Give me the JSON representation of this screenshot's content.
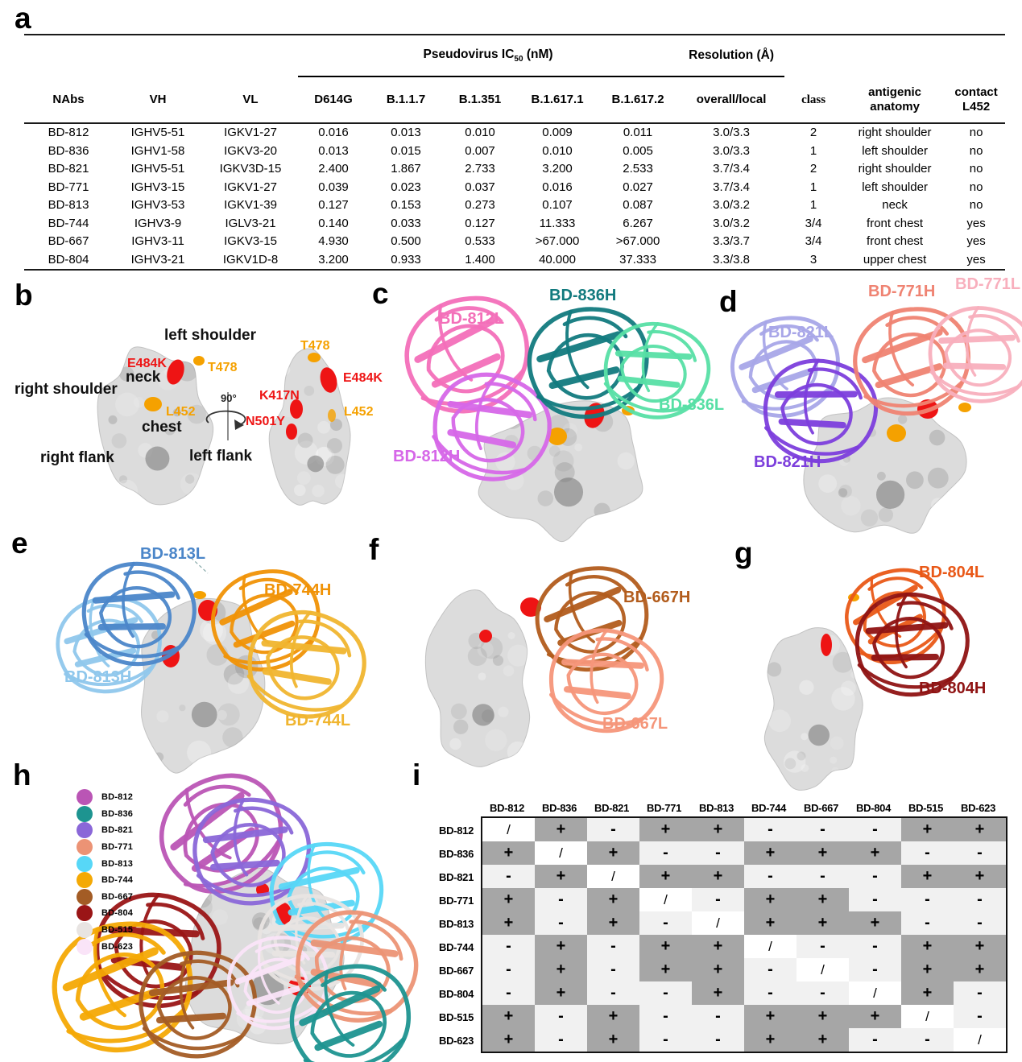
{
  "colors": {
    "site_red": "#ee1414",
    "site_orange": "#f5a100",
    "matrix_dark": "#a6a6a6",
    "matrix_light": "#f1f1f1",
    "surface_gray": "#dcdcdc",
    "surface_dark": "#7e7e7e"
  },
  "panels": {
    "a": "a",
    "b": "b",
    "c": "c",
    "d": "d",
    "e": "e",
    "f": "f",
    "g": "g",
    "h": "h",
    "i": "i"
  },
  "table": {
    "group_headers": {
      "ic50_pre": "Pseudovirus IC",
      "ic50_sub": "50",
      "ic50_post": " (nM)",
      "resolution": "Resolution (Å)"
    },
    "columns": [
      "NAbs",
      "VH",
      "VL",
      "D614G",
      "B.1.1.7",
      "B.1.351",
      "B.1.617.1",
      "B.1.617.2",
      "overall/local",
      "class",
      "antigenic anatomy",
      "contact L452"
    ],
    "rows": [
      [
        "BD-812",
        "IGHV5-51",
        "IGKV1-27",
        "0.016",
        "0.013",
        "0.010",
        "0.009",
        "0.011",
        "3.0/3.3",
        "2",
        "right shoulder",
        "no"
      ],
      [
        "BD-836",
        "IGHV1-58",
        "IGKV3-20",
        "0.013",
        "0.015",
        "0.007",
        "0.010",
        "0.005",
        "3.0/3.3",
        "1",
        "left shoulder",
        "no"
      ],
      [
        "BD-821",
        "IGHV5-51",
        "IGKV3D-15",
        "2.400",
        "1.867",
        "2.733",
        "3.200",
        "2.533",
        "3.7/3.4",
        "2",
        "right shoulder",
        "no"
      ],
      [
        "BD-771",
        "IGHV3-15",
        "IGKV1-27",
        "0.039",
        "0.023",
        "0.037",
        "0.016",
        "0.027",
        "3.7/3.4",
        "1",
        "left shoulder",
        "no"
      ],
      [
        "BD-813",
        "IGHV3-53",
        "IGKV1-39",
        "0.127",
        "0.153",
        "0.273",
        "0.107",
        "0.087",
        "3.0/3.2",
        "1",
        "neck",
        "no"
      ],
      [
        "BD-744",
        "IGHV3-9",
        "IGLV3-21",
        "0.140",
        "0.033",
        "0.127",
        "11.333",
        "6.267",
        "3.0/3.2",
        "3/4",
        "front chest",
        "yes"
      ],
      [
        "BD-667",
        "IGHV3-11",
        "IGKV3-15",
        "4.930",
        "0.500",
        "0.533",
        ">67.000",
        ">67.000",
        "3.3/3.7",
        "3/4",
        "front chest",
        "yes"
      ],
      [
        "BD-804",
        "IGHV3-21",
        "IGKV1D-8",
        "3.200",
        "0.933",
        "1.400",
        "40.000",
        "37.333",
        "3.3/3.8",
        "3",
        "upper chest",
        "yes"
      ]
    ]
  },
  "panel_b": {
    "anatomy_labels": [
      "left shoulder",
      "neck",
      "right shoulder",
      "chest",
      "right flank",
      "left flank"
    ],
    "rotation_label": "90°",
    "sites_view1": [
      {
        "text": "E484K",
        "color": "#ee1414"
      },
      {
        "text": "T478",
        "color": "#f5a100"
      },
      {
        "text": "L452",
        "color": "#f5a100"
      }
    ],
    "sites_view2": [
      {
        "text": "T478",
        "color": "#f5a100"
      },
      {
        "text": "E484K",
        "color": "#ee1414"
      },
      {
        "text": "K417N",
        "color": "#ee1414"
      },
      {
        "text": "N501Y",
        "color": "#ee1414"
      },
      {
        "text": "L452",
        "color": "#f5a100"
      }
    ]
  },
  "panel_c": {
    "chains": [
      {
        "label": "BD-812L",
        "color": "#f36fb9"
      },
      {
        "label": "BD-836H",
        "color": "#127a7e"
      },
      {
        "label": "BD-836L",
        "color": "#57dfa5"
      },
      {
        "label": "BD-812H",
        "color": "#d667e8"
      }
    ]
  },
  "panel_d": {
    "chains": [
      {
        "label": "BD-771H",
        "color": "#ef8372"
      },
      {
        "label": "BD-771L",
        "color": "#f8afbd"
      },
      {
        "label": "BD-821L",
        "color": "#a8a6e8"
      },
      {
        "label": "BD-821H",
        "color": "#7c3edc"
      }
    ]
  },
  "panel_e": {
    "chains": [
      {
        "label": "BD-813L",
        "color": "#4b86c9"
      },
      {
        "label": "BD-744H",
        "color": "#f09206"
      },
      {
        "label": "BD-813H",
        "color": "#8fc7ec"
      },
      {
        "label": "BD-744L",
        "color": "#f0b52f"
      }
    ]
  },
  "panel_f": {
    "chains": [
      {
        "label": "BD-667H",
        "color": "#b25c1c"
      },
      {
        "label": "BD-667L",
        "color": "#f5967a"
      }
    ]
  },
  "panel_g": {
    "chains": [
      {
        "label": "BD-804L",
        "color": "#e95817"
      },
      {
        "label": "BD-804H",
        "color": "#8f1313"
      }
    ]
  },
  "panel_h": {
    "legend": [
      {
        "label": "BD-812",
        "color": "#ba55b5"
      },
      {
        "label": "BD-836",
        "color": "#1d9490"
      },
      {
        "label": "BD-821",
        "color": "#8a67d8"
      },
      {
        "label": "BD-771",
        "color": "#ec9375"
      },
      {
        "label": "BD-813",
        "color": "#57d7f7"
      },
      {
        "label": "BD-744",
        "color": "#f4a905"
      },
      {
        "label": "BD-667",
        "color": "#a35c25"
      },
      {
        "label": "BD-804",
        "color": "#9a1516"
      },
      {
        "label": "BD-515",
        "color": "#e8e4e2"
      },
      {
        "label": "BD-623",
        "color": "#fae4f8"
      }
    ]
  },
  "matrix": {
    "columns": [
      "BD-812",
      "BD-836",
      "BD-821",
      "BD-771",
      "BD-813",
      "BD-744",
      "BD-667",
      "BD-804",
      "BD-515",
      "BD-623"
    ],
    "cell_class": {
      "+": "pos",
      "-": "neg",
      "/": "diag"
    },
    "rows": [
      {
        "name": "BD-812",
        "cells": [
          "/",
          "+",
          "-",
          "+",
          "+",
          "-",
          "-",
          "-",
          "+",
          "+"
        ]
      },
      {
        "name": "BD-836",
        "cells": [
          "+",
          "/",
          "+",
          "-",
          "-",
          "+",
          "+",
          "+",
          "-",
          "-"
        ]
      },
      {
        "name": "BD-821",
        "cells": [
          "-",
          "+",
          "/",
          "+",
          "+",
          "-",
          "-",
          "-",
          "+",
          "+"
        ]
      },
      {
        "name": "BD-771",
        "cells": [
          "+",
          "-",
          "+",
          "/",
          "-",
          "+",
          "+",
          "-",
          "-",
          "-"
        ]
      },
      {
        "name": "BD-813",
        "cells": [
          "+",
          "-",
          "+",
          "-",
          "/",
          "+",
          "+",
          "+",
          "-",
          "-"
        ]
      },
      {
        "name": "BD-744",
        "cells": [
          "-",
          "+",
          "-",
          "+",
          "+",
          "/",
          "-",
          "-",
          "+",
          "+"
        ]
      },
      {
        "name": "BD-667",
        "cells": [
          "-",
          "+",
          "-",
          "+",
          "+",
          "-",
          "/",
          "-",
          "+",
          "+"
        ]
      },
      {
        "name": "BD-804",
        "cells": [
          "-",
          "+",
          "-",
          "-",
          "+",
          "-",
          "-",
          "/",
          "+",
          "-"
        ]
      },
      {
        "name": "BD-515",
        "cells": [
          "+",
          "-",
          "+",
          "-",
          "-",
          "+",
          "+",
          "+",
          "/",
          "-"
        ]
      },
      {
        "name": "BD-623",
        "cells": [
          "+",
          "-",
          "+",
          "-",
          "-",
          "+",
          "+",
          "-",
          "-",
          "/"
        ]
      }
    ]
  }
}
